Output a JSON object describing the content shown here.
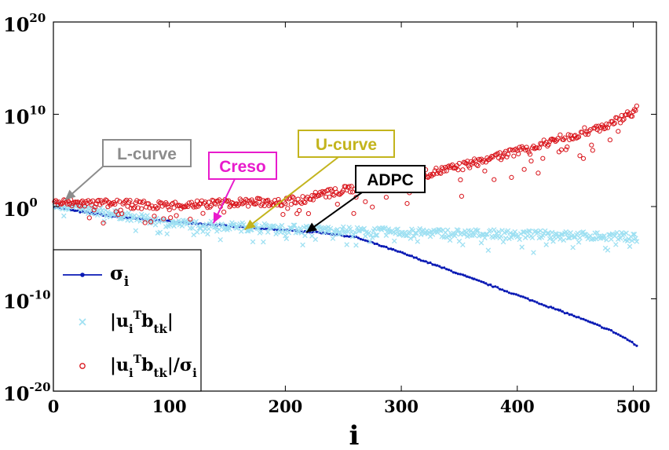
{
  "chart_data": {
    "type": "scatter",
    "title": "",
    "xlabel": "i",
    "ylabel": "",
    "xlim": [
      0,
      520
    ],
    "ylim_log10": [
      -20,
      20
    ],
    "y_scale": "log",
    "xticks": [
      "0",
      "100",
      "200",
      "300",
      "400",
      "500"
    ],
    "yticks": [
      {
        "base": "10",
        "exp": "-20",
        "value": -20
      },
      {
        "base": "10",
        "exp": "-10",
        "value": -10
      },
      {
        "base": "10",
        "exp": "0",
        "value": 0
      },
      {
        "base": "10",
        "exp": "10",
        "value": 10
      },
      {
        "base": "10",
        "exp": "20",
        "value": 20
      }
    ],
    "series": [
      {
        "name": "σi",
        "legend_main": "σ",
        "legend_sub": "i",
        "marker": "dot-line",
        "color": "#0a1ab4",
        "log10_profile": [
          [
            0,
            0.0
          ],
          [
            20,
            -0.5
          ],
          [
            60,
            -1.2
          ],
          [
            120,
            -1.8
          ],
          [
            180,
            -2.4
          ],
          [
            230,
            -2.8
          ],
          [
            260,
            -3.3
          ],
          [
            300,
            -5.0
          ],
          [
            350,
            -7.3
          ],
          [
            400,
            -9.6
          ],
          [
            450,
            -11.9
          ],
          [
            480,
            -13.4
          ],
          [
            495,
            -14.4
          ],
          [
            503,
            -15.1
          ]
        ]
      },
      {
        "name": "|ui^T btk|",
        "legend_text": [
          "|u",
          "i",
          "T",
          "b",
          "tk",
          "|"
        ],
        "marker": "x",
        "color": "#9ee0f2",
        "log10_profile": [
          [
            0,
            0.3
          ],
          [
            100,
            -1.8
          ],
          [
            200,
            -2.4
          ],
          [
            300,
            -2.8
          ],
          [
            400,
            -3.0
          ],
          [
            503,
            -3.3
          ]
        ],
        "spread": 1.6
      },
      {
        "name": "|ui^T btk|/σi",
        "legend_text": [
          "|u",
          "i",
          "T",
          "b",
          "tk",
          "|/σ",
          "i"
        ],
        "marker": "circle",
        "color": "#d9141b",
        "log10_profile": [
          [
            0,
            0.4
          ],
          [
            50,
            0.3
          ],
          [
            100,
            0.1
          ],
          [
            150,
            0.4
          ],
          [
            200,
            0.5
          ],
          [
            260,
            2.0
          ],
          [
            300,
            3.0
          ],
          [
            350,
            4.3
          ],
          [
            400,
            6.0
          ],
          [
            450,
            7.8
          ],
          [
            480,
            8.9
          ],
          [
            503,
            10.5
          ]
        ],
        "spread": 1.2
      }
    ],
    "annotations": [
      {
        "label": "L-curve",
        "color": "#8c8c8c",
        "fill": "#ffffff",
        "border": "#8c8c8c",
        "target_x": 10,
        "target_log10": 0.7
      },
      {
        "label": "Creso",
        "color": "#e81bcc",
        "fill": "#ffffff",
        "border": "#e81bcc",
        "target_x": 138,
        "target_log10": -1.8
      },
      {
        "label": "U-curve",
        "color": "#c3b41d",
        "fill": "#ffffff",
        "border": "#c3b41d",
        "target_x": 165,
        "target_log10": -2.5
      },
      {
        "label": "ADPC",
        "color": "#000000",
        "fill": "#ffffff",
        "border": "#000000",
        "target_x": 218,
        "target_log10": -2.8
      }
    ],
    "legend": {
      "position": "bottom-left"
    }
  }
}
